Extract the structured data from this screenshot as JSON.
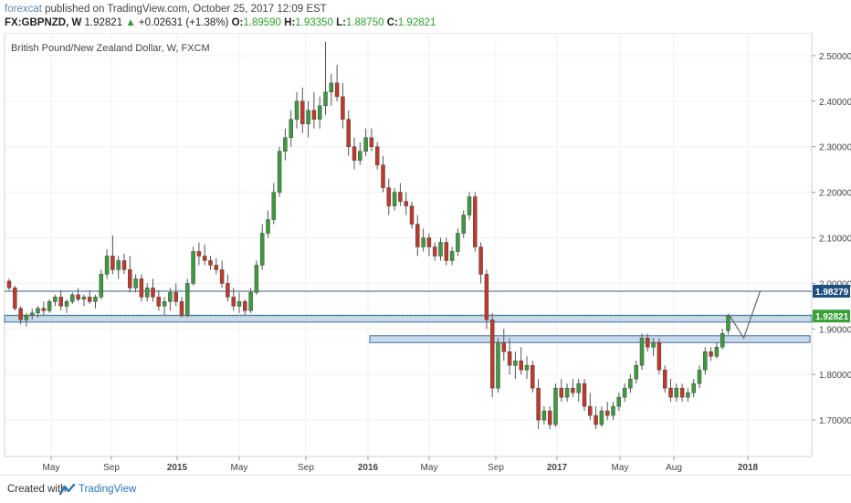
{
  "header": {
    "author": "forexcat",
    "published": " published on TradingView.com, October 25, 2017 12:09 EST",
    "symbol": "FX:GBPNZD, W",
    "last": "1.92821",
    "change": "+0.02631 (+1.38%)",
    "o_label": "O:",
    "o_value": "1.89590",
    "h_label": "H:",
    "h_value": "1.93350",
    "l_label": "L:",
    "l_value": "1.88750",
    "c_label": "C:",
    "c_value": "1.92821"
  },
  "footer": {
    "created_label": "Created with",
    "brand": "TradingView"
  },
  "colors": {
    "up": "#3e9a3e",
    "down": "#c0392b",
    "zone_fill": "#b9cde4",
    "zone_stroke": "#3b6ea5",
    "hline": "#2f5f8f",
    "price_label": "#3aa03a",
    "level_label": "#1e4f80"
  },
  "chart_data": {
    "type": "candlestick",
    "title": "British Pound/New Zealand Dollar, W, FXCM",
    "ylim": [
      1.62,
      2.55
    ],
    "y_ticks": [
      "2.50000",
      "2.40000",
      "2.30000",
      "2.20000",
      "2.10000",
      "2.00000",
      "1.90000",
      "1.80000",
      "1.70000"
    ],
    "x_ticks": [
      "May",
      "Sep",
      "2015",
      "May",
      "Sep",
      "2016",
      "May",
      "Sep",
      "2017",
      "May",
      "Aug",
      "2018"
    ],
    "grid": true,
    "candles": [
      [
        2.005,
        2.01,
        1.985,
        1.99
      ],
      [
        1.99,
        1.995,
        1.94,
        1.945
      ],
      [
        1.945,
        1.95,
        1.91,
        1.92
      ],
      [
        1.92,
        1.935,
        1.905,
        1.93
      ],
      [
        1.93,
        1.945,
        1.92,
        1.935
      ],
      [
        1.935,
        1.95,
        1.925,
        1.945
      ],
      [
        1.945,
        1.96,
        1.93,
        1.94
      ],
      [
        1.94,
        1.965,
        1.935,
        1.96
      ],
      [
        1.96,
        1.975,
        1.95,
        1.97
      ],
      [
        1.97,
        1.985,
        1.94,
        1.95
      ],
      [
        1.95,
        1.965,
        1.935,
        1.96
      ],
      [
        1.96,
        1.98,
        1.955,
        1.975
      ],
      [
        1.975,
        1.99,
        1.96,
        1.965
      ],
      [
        1.965,
        1.975,
        1.95,
        1.97
      ],
      [
        1.97,
        1.985,
        1.955,
        1.96
      ],
      [
        1.96,
        1.975,
        1.945,
        1.97
      ],
      [
        1.97,
        2.03,
        1.965,
        2.02
      ],
      [
        2.02,
        2.075,
        2.01,
        2.06
      ],
      [
        2.06,
        2.105,
        2.02,
        2.03
      ],
      [
        2.03,
        2.06,
        2.01,
        2.05
      ],
      [
        2.05,
        2.065,
        2.02,
        2.03
      ],
      [
        2.03,
        2.06,
        1.98,
        1.99
      ],
      [
        1.99,
        2.02,
        1.98,
        2.01
      ],
      [
        2.01,
        2.02,
        1.96,
        1.97
      ],
      [
        1.97,
        2.0,
        1.96,
        1.99
      ],
      [
        1.99,
        2.01,
        1.96,
        1.97
      ],
      [
        1.97,
        1.985,
        1.94,
        1.95
      ],
      [
        1.95,
        1.97,
        1.93,
        1.96
      ],
      [
        1.96,
        1.99,
        1.94,
        1.98
      ],
      [
        1.98,
        2.0,
        1.95,
        1.96
      ],
      [
        1.96,
        1.97,
        1.925,
        1.93
      ],
      [
        1.93,
        2.01,
        1.925,
        2.0
      ],
      [
        2.0,
        2.08,
        1.995,
        2.07
      ],
      [
        2.07,
        2.09,
        2.04,
        2.06
      ],
      [
        2.06,
        2.085,
        2.04,
        2.05
      ],
      [
        2.05,
        2.06,
        2.03,
        2.04
      ],
      [
        2.04,
        2.055,
        2.02,
        2.03
      ],
      [
        2.03,
        2.05,
        1.99,
        2.0
      ],
      [
        2.0,
        2.02,
        1.96,
        1.97
      ],
      [
        1.97,
        1.99,
        1.94,
        1.95
      ],
      [
        1.95,
        1.98,
        1.935,
        1.96
      ],
      [
        1.96,
        1.965,
        1.93,
        1.94
      ],
      [
        1.94,
        1.99,
        1.935,
        1.98
      ],
      [
        1.98,
        2.05,
        1.975,
        2.04
      ],
      [
        2.04,
        2.13,
        2.03,
        2.11
      ],
      [
        2.11,
        2.16,
        2.1,
        2.14
      ],
      [
        2.14,
        2.22,
        2.13,
        2.2
      ],
      [
        2.2,
        2.3,
        2.19,
        2.29
      ],
      [
        2.29,
        2.34,
        2.27,
        2.32
      ],
      [
        2.32,
        2.38,
        2.3,
        2.36
      ],
      [
        2.36,
        2.42,
        2.34,
        2.4
      ],
      [
        2.4,
        2.43,
        2.33,
        2.35
      ],
      [
        2.35,
        2.4,
        2.32,
        2.38
      ],
      [
        2.38,
        2.42,
        2.34,
        2.36
      ],
      [
        2.36,
        2.41,
        2.34,
        2.39
      ],
      [
        2.39,
        2.53,
        2.37,
        2.42
      ],
      [
        2.42,
        2.46,
        2.39,
        2.44
      ],
      [
        2.44,
        2.48,
        2.4,
        2.41
      ],
      [
        2.41,
        2.44,
        2.34,
        2.36
      ],
      [
        2.36,
        2.38,
        2.28,
        2.3
      ],
      [
        2.3,
        2.32,
        2.25,
        2.27
      ],
      [
        2.27,
        2.31,
        2.26,
        2.29
      ],
      [
        2.29,
        2.34,
        2.28,
        2.32
      ],
      [
        2.32,
        2.34,
        2.29,
        2.3
      ],
      [
        2.3,
        2.31,
        2.25,
        2.26
      ],
      [
        2.26,
        2.28,
        2.2,
        2.21
      ],
      [
        2.21,
        2.23,
        2.15,
        2.17
      ],
      [
        2.17,
        2.21,
        2.16,
        2.2
      ],
      [
        2.2,
        2.22,
        2.17,
        2.18
      ],
      [
        2.18,
        2.2,
        2.15,
        2.17
      ],
      [
        2.17,
        2.18,
        2.12,
        2.13
      ],
      [
        2.13,
        2.15,
        2.06,
        2.08
      ],
      [
        2.08,
        2.12,
        2.07,
        2.1
      ],
      [
        2.1,
        2.11,
        2.06,
        2.08
      ],
      [
        2.08,
        2.09,
        2.05,
        2.06
      ],
      [
        2.06,
        2.1,
        2.05,
        2.09
      ],
      [
        2.09,
        2.1,
        2.04,
        2.05
      ],
      [
        2.05,
        2.08,
        2.04,
        2.07
      ],
      [
        2.07,
        2.12,
        2.06,
        2.11
      ],
      [
        2.11,
        2.16,
        2.1,
        2.15
      ],
      [
        2.15,
        2.2,
        2.14,
        2.19
      ],
      [
        2.19,
        2.2,
        2.07,
        2.08
      ],
      [
        2.08,
        2.09,
        2.0,
        2.02
      ],
      [
        2.02,
        2.03,
        1.9,
        1.92
      ],
      [
        1.92,
        1.935,
        1.75,
        1.77
      ],
      [
        1.77,
        1.88,
        1.76,
        1.87
      ],
      [
        1.87,
        1.9,
        1.83,
        1.85
      ],
      [
        1.85,
        1.88,
        1.8,
        1.82
      ],
      [
        1.82,
        1.85,
        1.79,
        1.83
      ],
      [
        1.83,
        1.86,
        1.8,
        1.81
      ],
      [
        1.81,
        1.84,
        1.79,
        1.82
      ],
      [
        1.82,
        1.83,
        1.76,
        1.77
      ],
      [
        1.77,
        1.79,
        1.68,
        1.7
      ],
      [
        1.7,
        1.73,
        1.69,
        1.72
      ],
      [
        1.72,
        1.73,
        1.68,
        1.69
      ],
      [
        1.69,
        1.78,
        1.685,
        1.77
      ],
      [
        1.77,
        1.79,
        1.74,
        1.75
      ],
      [
        1.75,
        1.78,
        1.74,
        1.77
      ],
      [
        1.77,
        1.79,
        1.75,
        1.76
      ],
      [
        1.76,
        1.79,
        1.74,
        1.78
      ],
      [
        1.78,
        1.79,
        1.72,
        1.73
      ],
      [
        1.73,
        1.76,
        1.7,
        1.71
      ],
      [
        1.71,
        1.73,
        1.68,
        1.69
      ],
      [
        1.69,
        1.73,
        1.685,
        1.72
      ],
      [
        1.72,
        1.74,
        1.7,
        1.71
      ],
      [
        1.71,
        1.74,
        1.7,
        1.73
      ],
      [
        1.73,
        1.76,
        1.72,
        1.75
      ],
      [
        1.75,
        1.78,
        1.74,
        1.77
      ],
      [
        1.77,
        1.8,
        1.76,
        1.79
      ],
      [
        1.79,
        1.83,
        1.78,
        1.82
      ],
      [
        1.82,
        1.89,
        1.81,
        1.88
      ],
      [
        1.88,
        1.89,
        1.85,
        1.86
      ],
      [
        1.86,
        1.88,
        1.84,
        1.87
      ],
      [
        1.87,
        1.88,
        1.8,
        1.81
      ],
      [
        1.81,
        1.82,
        1.76,
        1.77
      ],
      [
        1.77,
        1.79,
        1.74,
        1.75
      ],
      [
        1.75,
        1.78,
        1.74,
        1.77
      ],
      [
        1.77,
        1.78,
        1.74,
        1.75
      ],
      [
        1.75,
        1.77,
        1.74,
        1.76
      ],
      [
        1.76,
        1.79,
        1.75,
        1.78
      ],
      [
        1.78,
        1.82,
        1.77,
        1.81
      ],
      [
        1.81,
        1.86,
        1.8,
        1.85
      ],
      [
        1.85,
        1.86,
        1.83,
        1.84
      ],
      [
        1.84,
        1.87,
        1.835,
        1.86
      ],
      [
        1.86,
        1.9,
        1.855,
        1.89
      ],
      [
        1.8959,
        1.9335,
        1.8875,
        1.92821
      ]
    ],
    "levels": [
      {
        "name": "resistance-line",
        "value": 1.98279,
        "label": "1.98279"
      },
      {
        "name": "last-price",
        "value": 1.92821,
        "label": "1.92821"
      }
    ],
    "zones": [
      {
        "name": "upper-zone",
        "from": 1.915,
        "to": 1.93
      },
      {
        "name": "lower-zone",
        "from": 1.87,
        "to": 1.885
      }
    ],
    "projection": [
      1.92821,
      1.88,
      1.98279
    ]
  }
}
